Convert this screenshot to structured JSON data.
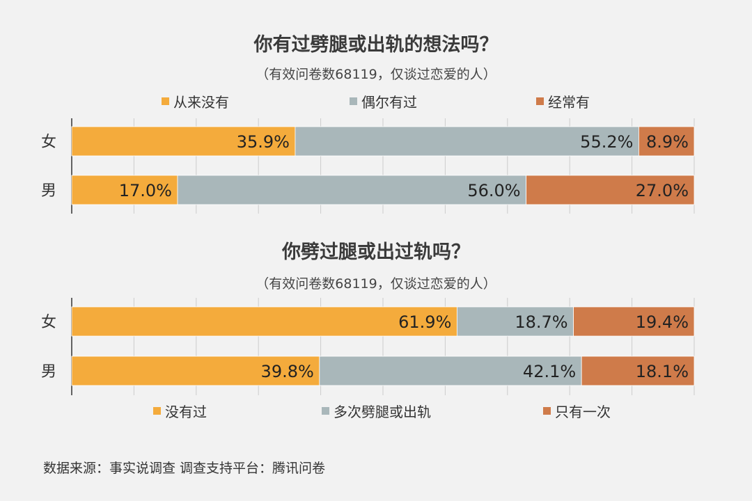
{
  "chart_data": [
    {
      "type": "bar",
      "stacked": true,
      "orientation": "horizontal",
      "title": "你有过劈腿或出轨的想法吗？",
      "subtitle": "（有效问卷数68119，仅谈过恋爱的人）",
      "categories": [
        "女",
        "男"
      ],
      "series": [
        {
          "name": "从来没有",
          "values": [
            35.9,
            17.0
          ],
          "labels": [
            "35.9%",
            "17.0%"
          ],
          "color": "#f4ab3c"
        },
        {
          "name": "偶尔有过",
          "values": [
            55.2,
            56.0
          ],
          "labels": [
            "55.2%",
            "56.0%"
          ],
          "color": "#a9b7ba"
        },
        {
          "name": "经常有",
          "values": [
            8.9,
            27.0
          ],
          "labels": [
            "8.9%",
            "27.0%"
          ],
          "color": "#cf7b4a"
        }
      ],
      "xlim": [
        0,
        100
      ],
      "legend": "top",
      "grid": true
    },
    {
      "type": "bar",
      "stacked": true,
      "orientation": "horizontal",
      "title": "你劈过腿或出过轨吗？",
      "subtitle": "（有效问卷数68119，仅谈过恋爱的人）",
      "categories": [
        "女",
        "男"
      ],
      "series": [
        {
          "name": "没有过",
          "values": [
            61.9,
            39.8
          ],
          "labels": [
            "61.9%",
            "39.8%"
          ],
          "color": "#f4ab3c"
        },
        {
          "name": "多次劈腿或出轨",
          "values": [
            18.7,
            42.1
          ],
          "labels": [
            "18.7%",
            "42.1%"
          ],
          "color": "#a9b7ba"
        },
        {
          "name": "只有一次",
          "values": [
            19.4,
            18.1
          ],
          "labels": [
            "19.4%",
            "18.1%"
          ],
          "color": "#cf7b4a"
        }
      ],
      "xlim": [
        0,
        100
      ],
      "legend": "bottom",
      "grid": true
    }
  ],
  "source_text": "数据来源：事实说调查  调查支持平台：腾讯问卷",
  "colors": {
    "background": "#f2f2f2",
    "grid": "#cccccc",
    "axis": "#333333"
  }
}
